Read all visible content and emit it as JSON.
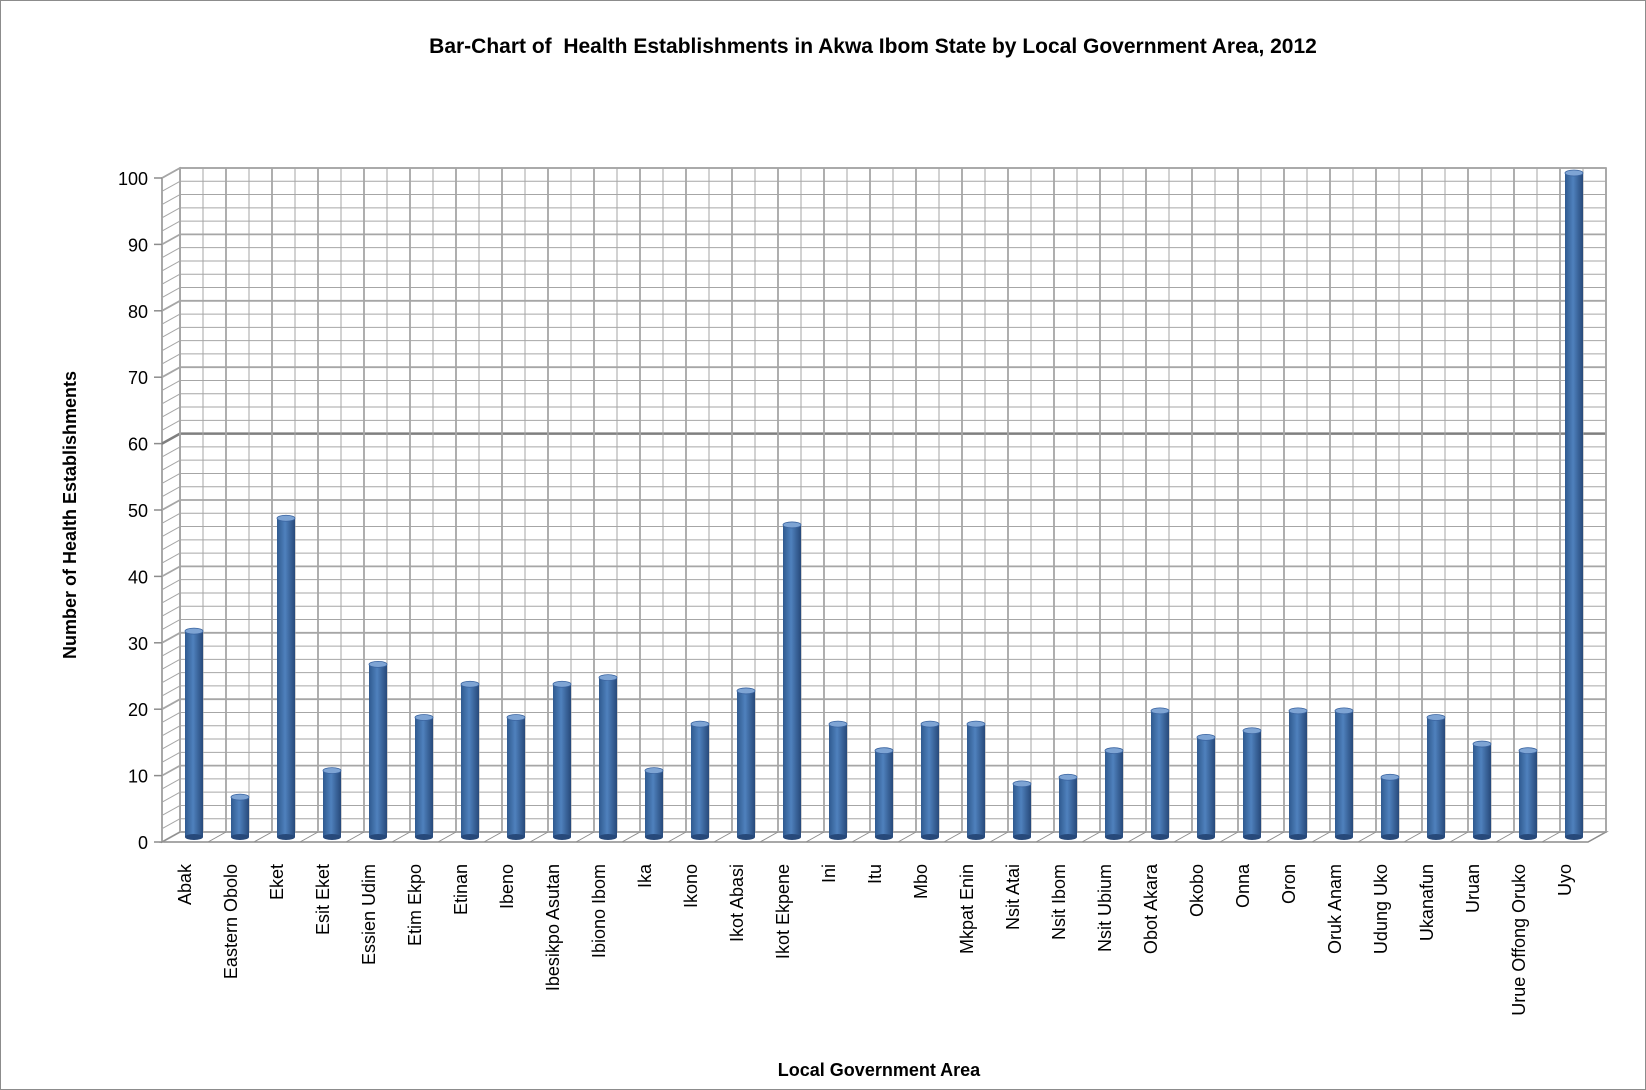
{
  "chart_data": {
    "type": "bar",
    "title": "Bar-Chart of  Health Establishments in Akwa Ibom State by Local Government Area, 2012",
    "xlabel": "Local Government Area",
    "ylabel": "Number of Health Establishments",
    "ylim": [
      0,
      100
    ],
    "yticks": [
      0,
      10,
      20,
      30,
      40,
      50,
      60,
      70,
      80,
      90,
      100
    ],
    "grid": true,
    "legend": "none",
    "bar_color": "#4f81bd",
    "categories": [
      "Abak",
      "Eastern Obolo",
      "Eket",
      "Esit Eket",
      "Essien Udim",
      "Etim Ekpo",
      "Etinan",
      "Ibeno",
      "Ibesikpo Asutan",
      "Ibiono Ibom",
      "Ika",
      "Ikono",
      "Ikot Abasi",
      "Ikot Ekpene",
      "Ini",
      "Itu",
      "Mbo",
      "Mkpat Enin",
      "Nsit Atai",
      "Nsit Ibom",
      "Nsit Ubium",
      "Obot Akara",
      "Okobo",
      "Onna",
      "Oron",
      "Oruk Anam",
      "Udung Uko",
      "Ukanafun",
      "Uruan",
      "Urue Offong Oruko",
      "Uyo"
    ],
    "values": [
      31,
      6,
      48,
      10,
      26,
      18,
      23,
      18,
      23,
      24,
      10,
      17,
      22,
      47,
      17,
      13,
      17,
      17,
      8,
      9,
      13,
      19,
      15,
      16,
      19,
      19,
      9,
      18,
      14,
      13,
      100
    ]
  }
}
